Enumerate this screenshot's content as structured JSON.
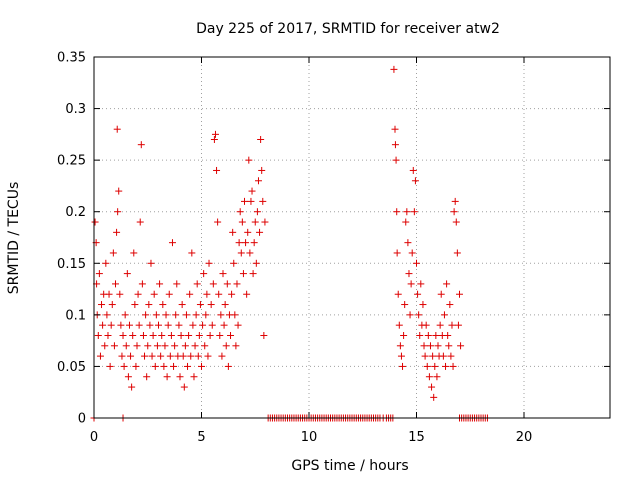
{
  "chart_data": {
    "type": "scatter",
    "title": "Day 225 of 2017, SRMTID for receiver atw2",
    "xlabel": "GPS time / hours",
    "ylabel": "SRMTID / TECUs",
    "xlim": [
      0,
      24
    ],
    "ylim": [
      0,
      0.35
    ],
    "x_ticks": [
      0,
      5,
      10,
      15,
      20
    ],
    "x_tick_labels": [
      "0",
      "5",
      "10",
      "15",
      "20"
    ],
    "y_ticks": [
      0,
      0.05,
      0.1,
      0.15,
      0.2,
      0.25,
      0.3,
      0.35
    ],
    "y_tick_labels": [
      "0",
      "0.05",
      "0.1",
      "0.15",
      "0.2",
      "0.25",
      "0.3",
      "0.35"
    ],
    "grid": true,
    "marker": "+",
    "series": [
      {
        "name": "SRMTID",
        "color": "#dd0000",
        "points": [
          [
            0.05,
            0.19
          ],
          [
            0.1,
            0.17
          ],
          [
            0.12,
            0.13
          ],
          [
            0.15,
            0.1
          ],
          [
            0.2,
            0.08
          ],
          [
            0.25,
            0.14
          ],
          [
            0.3,
            0.06
          ],
          [
            0.35,
            0.11
          ],
          [
            0.4,
            0.09
          ],
          [
            0.45,
            0.12
          ],
          [
            0.5,
            0.07
          ],
          [
            0.55,
            0.15
          ],
          [
            0.6,
            0.1
          ],
          [
            0.65,
            0.08
          ],
          [
            0.7,
            0.12
          ],
          [
            0.75,
            0.05
          ],
          [
            0.8,
            0.09
          ],
          [
            0.85,
            0.11
          ],
          [
            0.9,
            0.16
          ],
          [
            0.95,
            0.07
          ],
          [
            1.0,
            0.13
          ],
          [
            1.05,
            0.18
          ],
          [
            1.08,
            0.28
          ],
          [
            1.1,
            0.2
          ],
          [
            1.15,
            0.22
          ],
          [
            1.2,
            0.12
          ],
          [
            1.25,
            0.09
          ],
          [
            1.3,
            0.06
          ],
          [
            1.35,
            0.08
          ],
          [
            1.4,
            0.05
          ],
          [
            1.45,
            0.1
          ],
          [
            1.5,
            0.07
          ],
          [
            1.55,
            0.14
          ],
          [
            1.6,
            0.04
          ],
          [
            1.65,
            0.09
          ],
          [
            1.7,
            0.06
          ],
          [
            1.75,
            0.03
          ],
          [
            1.8,
            0.08
          ],
          [
            1.85,
            0.16
          ],
          [
            1.9,
            0.11
          ],
          [
            1.95,
            0.05
          ],
          [
            2.0,
            0.07
          ],
          [
            2.05,
            0.12
          ],
          [
            2.1,
            0.09
          ],
          [
            2.15,
            0.19
          ],
          [
            2.2,
            0.265
          ],
          [
            2.25,
            0.13
          ],
          [
            2.3,
            0.08
          ],
          [
            2.35,
            0.06
          ],
          [
            2.4,
            0.1
          ],
          [
            2.45,
            0.04
          ],
          [
            2.5,
            0.07
          ],
          [
            2.55,
            0.11
          ],
          [
            2.6,
            0.09
          ],
          [
            2.65,
            0.15
          ],
          [
            2.7,
            0.06
          ],
          [
            2.75,
            0.08
          ],
          [
            2.8,
            0.12
          ],
          [
            2.85,
            0.05
          ],
          [
            2.9,
            0.1
          ],
          [
            2.95,
            0.07
          ],
          [
            3.0,
            0.09
          ],
          [
            3.05,
            0.13
          ],
          [
            3.1,
            0.06
          ],
          [
            3.15,
            0.08
          ],
          [
            3.2,
            0.11
          ],
          [
            3.25,
            0.05
          ],
          [
            3.3,
            0.07
          ],
          [
            3.35,
            0.1
          ],
          [
            3.4,
            0.04
          ],
          [
            3.45,
            0.09
          ],
          [
            3.5,
            0.12
          ],
          [
            3.55,
            0.06
          ],
          [
            3.6,
            0.08
          ],
          [
            3.65,
            0.17
          ],
          [
            3.7,
            0.05
          ],
          [
            3.75,
            0.07
          ],
          [
            3.8,
            0.1
          ],
          [
            3.85,
            0.13
          ],
          [
            3.9,
            0.06
          ],
          [
            3.95,
            0.09
          ],
          [
            4.0,
            0.04
          ],
          [
            4.05,
            0.08
          ],
          [
            4.1,
            0.11
          ],
          [
            4.15,
            0.06
          ],
          [
            4.2,
            0.03
          ],
          [
            4.25,
            0.07
          ],
          [
            4.3,
            0.1
          ],
          [
            4.35,
            0.05
          ],
          [
            4.4,
            0.08
          ],
          [
            4.45,
            0.12
          ],
          [
            4.5,
            0.06
          ],
          [
            4.55,
            0.16
          ],
          [
            4.6,
            0.09
          ],
          [
            4.65,
            0.04
          ],
          [
            4.7,
            0.07
          ],
          [
            4.75,
            0.1
          ],
          [
            4.8,
            0.13
          ],
          [
            4.85,
            0.06
          ],
          [
            4.9,
            0.08
          ],
          [
            4.95,
            0.11
          ],
          [
            5.0,
            0.05
          ],
          [
            5.05,
            0.09
          ],
          [
            5.1,
            0.14
          ],
          [
            5.15,
            0.07
          ],
          [
            5.2,
            0.1
          ],
          [
            5.25,
            0.12
          ],
          [
            5.3,
            0.06
          ],
          [
            5.35,
            0.15
          ],
          [
            5.4,
            0.08
          ],
          [
            5.45,
            0.11
          ],
          [
            5.5,
            0.09
          ],
          [
            5.55,
            0.13
          ],
          [
            5.6,
            0.27
          ],
          [
            5.65,
            0.275
          ],
          [
            5.7,
            0.24
          ],
          [
            5.75,
            0.19
          ],
          [
            5.8,
            0.12
          ],
          [
            5.85,
            0.08
          ],
          [
            5.9,
            0.1
          ],
          [
            5.95,
            0.06
          ],
          [
            6.0,
            0.14
          ],
          [
            6.05,
            0.09
          ],
          [
            6.1,
            0.11
          ],
          [
            6.15,
            0.07
          ],
          [
            6.2,
            0.13
          ],
          [
            6.25,
            0.05
          ],
          [
            6.3,
            0.1
          ],
          [
            6.35,
            0.08
          ],
          [
            6.4,
            0.12
          ],
          [
            6.45,
            0.18
          ],
          [
            6.5,
            0.15
          ],
          [
            6.55,
            0.1
          ],
          [
            6.6,
            0.07
          ],
          [
            6.65,
            0.13
          ],
          [
            6.7,
            0.09
          ],
          [
            6.75,
            0.17
          ],
          [
            6.8,
            0.2
          ],
          [
            6.85,
            0.16
          ],
          [
            6.9,
            0.19
          ],
          [
            6.95,
            0.14
          ],
          [
            7.0,
            0.21
          ],
          [
            7.05,
            0.17
          ],
          [
            7.1,
            0.12
          ],
          [
            7.15,
            0.18
          ],
          [
            7.2,
            0.25
          ],
          [
            7.25,
            0.16
          ],
          [
            7.3,
            0.21
          ],
          [
            7.35,
            0.22
          ],
          [
            7.4,
            0.14
          ],
          [
            7.45,
            0.17
          ],
          [
            7.5,
            0.19
          ],
          [
            7.55,
            0.15
          ],
          [
            7.6,
            0.2
          ],
          [
            7.65,
            0.23
          ],
          [
            7.7,
            0.18
          ],
          [
            7.75,
            0.27
          ],
          [
            7.8,
            0.24
          ],
          [
            7.85,
            0.21
          ],
          [
            7.9,
            0.08
          ],
          [
            7.95,
            0.19
          ],
          [
            13.95,
            0.338
          ],
          [
            14.0,
            0.28
          ],
          [
            14.02,
            0.265
          ],
          [
            14.05,
            0.25
          ],
          [
            14.08,
            0.2
          ],
          [
            14.1,
            0.16
          ],
          [
            14.15,
            0.12
          ],
          [
            14.2,
            0.09
          ],
          [
            14.25,
            0.07
          ],
          [
            14.3,
            0.06
          ],
          [
            14.35,
            0.05
          ],
          [
            14.4,
            0.08
          ],
          [
            14.45,
            0.11
          ],
          [
            14.5,
            0.19
          ],
          [
            14.55,
            0.2
          ],
          [
            14.6,
            0.17
          ],
          [
            14.65,
            0.14
          ],
          [
            14.7,
            0.1
          ],
          [
            14.75,
            0.13
          ],
          [
            14.8,
            0.16
          ],
          [
            14.85,
            0.24
          ],
          [
            14.9,
            0.2
          ],
          [
            14.95,
            0.23
          ],
          [
            15.0,
            0.15
          ],
          [
            15.05,
            0.12
          ],
          [
            15.1,
            0.1
          ],
          [
            15.15,
            0.08
          ],
          [
            15.2,
            0.13
          ],
          [
            15.25,
            0.09
          ],
          [
            15.3,
            0.11
          ],
          [
            15.35,
            0.07
          ],
          [
            15.4,
            0.06
          ],
          [
            15.45,
            0.09
          ],
          [
            15.5,
            0.05
          ],
          [
            15.55,
            0.08
          ],
          [
            15.6,
            0.04
          ],
          [
            15.65,
            0.07
          ],
          [
            15.7,
            0.03
          ],
          [
            15.75,
            0.06
          ],
          [
            15.8,
            0.02
          ],
          [
            15.85,
            0.05
          ],
          [
            15.9,
            0.08
          ],
          [
            15.95,
            0.04
          ],
          [
            16.0,
            0.07
          ],
          [
            16.05,
            0.06
          ],
          [
            16.1,
            0.09
          ],
          [
            16.15,
            0.12
          ],
          [
            16.2,
            0.08
          ],
          [
            16.25,
            0.06
          ],
          [
            16.3,
            0.1
          ],
          [
            16.35,
            0.05
          ],
          [
            16.4,
            0.13
          ],
          [
            16.45,
            0.08
          ],
          [
            16.5,
            0.07
          ],
          [
            16.55,
            0.11
          ],
          [
            16.6,
            0.06
          ],
          [
            16.65,
            0.09
          ],
          [
            16.7,
            0.05
          ],
          [
            16.75,
            0.2
          ],
          [
            16.8,
            0.21
          ],
          [
            16.85,
            0.19
          ],
          [
            16.9,
            0.16
          ],
          [
            16.95,
            0.09
          ],
          [
            17.0,
            0.12
          ],
          [
            17.05,
            0.07
          ]
        ]
      }
    ],
    "zero_x": [
      0.0,
      1.35,
      8.1,
      8.2,
      8.3,
      8.4,
      8.5,
      8.6,
      8.7,
      8.8,
      8.9,
      9.0,
      9.1,
      9.2,
      9.3,
      9.4,
      9.5,
      9.6,
      9.7,
      9.8,
      9.9,
      10.0,
      10.1,
      10.2,
      10.3,
      10.4,
      10.5,
      10.6,
      10.7,
      10.8,
      10.9,
      11.0,
      11.1,
      11.2,
      11.3,
      11.4,
      11.5,
      11.6,
      11.7,
      11.8,
      11.9,
      12.0,
      12.1,
      12.2,
      12.3,
      12.4,
      12.5,
      12.6,
      12.7,
      12.8,
      12.9,
      13.0,
      13.1,
      13.2,
      13.3,
      13.45,
      13.6,
      13.7,
      13.8,
      13.9,
      17.0,
      17.1,
      17.2,
      17.3,
      17.4,
      17.5,
      17.6,
      17.7,
      17.8,
      17.9,
      18.0,
      18.1,
      18.2,
      18.3
    ]
  }
}
